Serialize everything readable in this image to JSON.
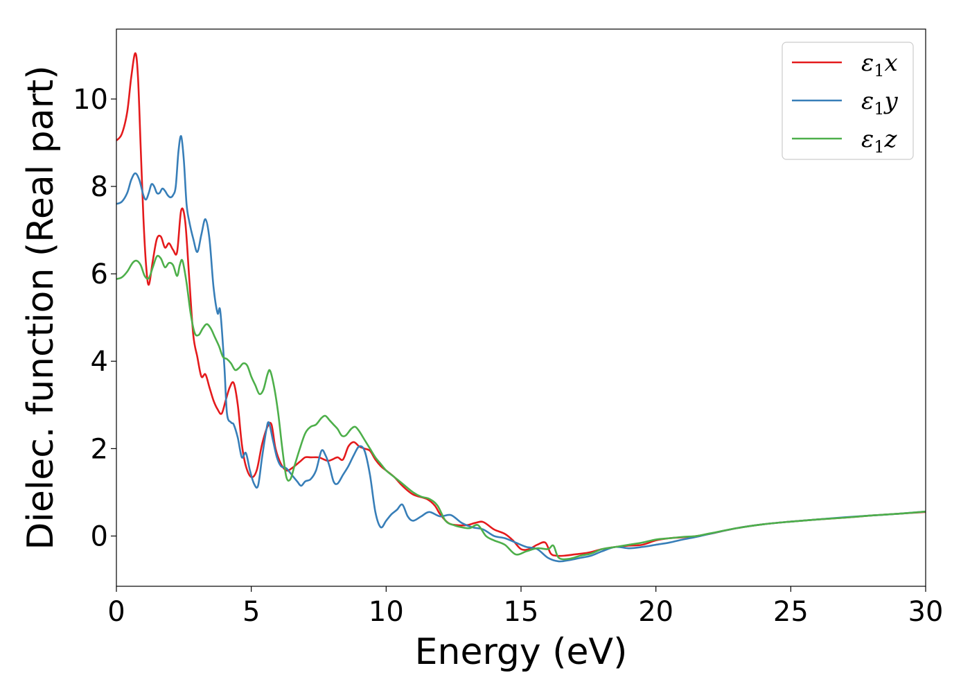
{
  "chart_data": {
    "type": "line",
    "xlabel": "Energy (eV)",
    "ylabel": "Dielec. function (Real part)",
    "xlim": [
      0,
      30
    ],
    "ylim": [
      -1.15,
      11.6
    ],
    "xticks": [
      0,
      5,
      10,
      15,
      20,
      25,
      30
    ],
    "yticks": [
      0,
      2,
      4,
      6,
      8,
      10
    ],
    "grid": false,
    "legend_position": "top-right",
    "series": [
      {
        "name": "ε₁x",
        "legend_base": "ε",
        "legend_sub": "1",
        "legend_var": "x",
        "color": "#e41a1c",
        "points": [
          [
            0,
            9.05
          ],
          [
            0.2,
            9.2
          ],
          [
            0.4,
            9.7
          ],
          [
            0.55,
            10.5
          ],
          [
            0.7,
            11.05
          ],
          [
            0.8,
            10.5
          ],
          [
            0.9,
            8.9
          ],
          [
            1.0,
            7.3
          ],
          [
            1.1,
            6.2
          ],
          [
            1.2,
            5.75
          ],
          [
            1.35,
            6.3
          ],
          [
            1.5,
            6.8
          ],
          [
            1.65,
            6.85
          ],
          [
            1.8,
            6.6
          ],
          [
            1.95,
            6.7
          ],
          [
            2.1,
            6.55
          ],
          [
            2.25,
            6.5
          ],
          [
            2.4,
            7.45
          ],
          [
            2.55,
            7.2
          ],
          [
            2.7,
            5.9
          ],
          [
            2.85,
            4.6
          ],
          [
            3.0,
            4.1
          ],
          [
            3.15,
            3.65
          ],
          [
            3.3,
            3.7
          ],
          [
            3.45,
            3.4
          ],
          [
            3.6,
            3.1
          ],
          [
            3.75,
            2.9
          ],
          [
            3.9,
            2.8
          ],
          [
            4.05,
            3.1
          ],
          [
            4.2,
            3.4
          ],
          [
            4.35,
            3.5
          ],
          [
            4.5,
            3.0
          ],
          [
            4.65,
            2.1
          ],
          [
            4.8,
            1.6
          ],
          [
            5.0,
            1.35
          ],
          [
            5.2,
            1.5
          ],
          [
            5.4,
            2.1
          ],
          [
            5.6,
            2.5
          ],
          [
            5.75,
            2.55
          ],
          [
            5.9,
            2.0
          ],
          [
            6.1,
            1.65
          ],
          [
            6.3,
            1.5
          ],
          [
            6.5,
            1.55
          ],
          [
            6.8,
            1.7
          ],
          [
            7.0,
            1.8
          ],
          [
            7.2,
            1.8
          ],
          [
            7.5,
            1.8
          ],
          [
            7.7,
            1.75
          ],
          [
            7.85,
            1.72
          ],
          [
            8.0,
            1.75
          ],
          [
            8.2,
            1.8
          ],
          [
            8.4,
            1.75
          ],
          [
            8.6,
            2.05
          ],
          [
            8.8,
            2.15
          ],
          [
            9.0,
            2.05
          ],
          [
            9.2,
            2.0
          ],
          [
            9.4,
            1.95
          ],
          [
            9.6,
            1.75
          ],
          [
            9.8,
            1.6
          ],
          [
            10.0,
            1.5
          ],
          [
            10.3,
            1.35
          ],
          [
            10.6,
            1.15
          ],
          [
            11.0,
            0.95
          ],
          [
            11.5,
            0.85
          ],
          [
            11.8,
            0.7
          ],
          [
            12.0,
            0.5
          ],
          [
            12.3,
            0.3
          ],
          [
            12.6,
            0.25
          ],
          [
            13.0,
            0.25
          ],
          [
            13.3,
            0.3
          ],
          [
            13.6,
            0.32
          ],
          [
            14.0,
            0.15
          ],
          [
            14.4,
            0.05
          ],
          [
            14.7,
            -0.1
          ],
          [
            15.0,
            -0.3
          ],
          [
            15.3,
            -0.3
          ],
          [
            15.6,
            -0.2
          ],
          [
            15.9,
            -0.15
          ],
          [
            16.1,
            -0.4
          ],
          [
            16.3,
            -0.45
          ],
          [
            16.6,
            -0.45
          ],
          [
            17.0,
            -0.42
          ],
          [
            17.5,
            -0.38
          ],
          [
            18.0,
            -0.3
          ],
          [
            18.5,
            -0.25
          ],
          [
            19.0,
            -0.22
          ],
          [
            19.5,
            -0.2
          ],
          [
            20.0,
            -0.1
          ],
          [
            20.5,
            -0.05
          ],
          [
            21.0,
            -0.03
          ],
          [
            21.5,
            0.0
          ],
          [
            22.0,
            0.05
          ],
          [
            23.0,
            0.18
          ],
          [
            24.0,
            0.27
          ],
          [
            25.0,
            0.33
          ],
          [
            26.0,
            0.38
          ],
          [
            27.0,
            0.42
          ],
          [
            28.0,
            0.47
          ],
          [
            29.0,
            0.51
          ],
          [
            30.0,
            0.55
          ]
        ]
      },
      {
        "name": "ε₁y",
        "legend_base": "ε",
        "legend_sub": "1",
        "legend_var": "y",
        "color": "#377eb8",
        "points": [
          [
            0,
            7.6
          ],
          [
            0.2,
            7.65
          ],
          [
            0.4,
            7.85
          ],
          [
            0.55,
            8.15
          ],
          [
            0.7,
            8.3
          ],
          [
            0.85,
            8.15
          ],
          [
            1.0,
            7.8
          ],
          [
            1.1,
            7.7
          ],
          [
            1.2,
            7.85
          ],
          [
            1.3,
            8.05
          ],
          [
            1.4,
            8.0
          ],
          [
            1.5,
            7.85
          ],
          [
            1.6,
            7.85
          ],
          [
            1.7,
            7.95
          ],
          [
            1.8,
            7.9
          ],
          [
            1.9,
            7.8
          ],
          [
            2.0,
            7.75
          ],
          [
            2.1,
            7.8
          ],
          [
            2.2,
            8.0
          ],
          [
            2.3,
            8.8
          ],
          [
            2.4,
            9.15
          ],
          [
            2.5,
            8.6
          ],
          [
            2.6,
            7.6
          ],
          [
            2.7,
            7.2
          ],
          [
            2.85,
            6.8
          ],
          [
            3.0,
            6.5
          ],
          [
            3.15,
            6.9
          ],
          [
            3.3,
            7.25
          ],
          [
            3.45,
            6.8
          ],
          [
            3.6,
            5.7
          ],
          [
            3.75,
            5.1
          ],
          [
            3.85,
            5.15
          ],
          [
            4.0,
            3.9
          ],
          [
            4.1,
            2.8
          ],
          [
            4.25,
            2.6
          ],
          [
            4.35,
            2.55
          ],
          [
            4.5,
            2.25
          ],
          [
            4.65,
            1.8
          ],
          [
            4.8,
            1.9
          ],
          [
            4.95,
            1.5
          ],
          [
            5.1,
            1.2
          ],
          [
            5.25,
            1.15
          ],
          [
            5.4,
            1.8
          ],
          [
            5.55,
            2.4
          ],
          [
            5.65,
            2.6
          ],
          [
            5.8,
            2.2
          ],
          [
            5.95,
            1.8
          ],
          [
            6.1,
            1.6
          ],
          [
            6.3,
            1.55
          ],
          [
            6.5,
            1.4
          ],
          [
            6.7,
            1.25
          ],
          [
            6.85,
            1.15
          ],
          [
            7.0,
            1.25
          ],
          [
            7.2,
            1.3
          ],
          [
            7.4,
            1.5
          ],
          [
            7.6,
            1.95
          ],
          [
            7.75,
            1.85
          ],
          [
            7.9,
            1.6
          ],
          [
            8.05,
            1.25
          ],
          [
            8.2,
            1.2
          ],
          [
            8.4,
            1.4
          ],
          [
            8.6,
            1.6
          ],
          [
            8.8,
            1.85
          ],
          [
            9.0,
            2.05
          ],
          [
            9.2,
            1.95
          ],
          [
            9.4,
            1.4
          ],
          [
            9.6,
            0.55
          ],
          [
            9.8,
            0.2
          ],
          [
            10.0,
            0.35
          ],
          [
            10.2,
            0.5
          ],
          [
            10.4,
            0.6
          ],
          [
            10.6,
            0.72
          ],
          [
            10.8,
            0.45
          ],
          [
            11.0,
            0.35
          ],
          [
            11.3,
            0.45
          ],
          [
            11.6,
            0.55
          ],
          [
            12.0,
            0.45
          ],
          [
            12.4,
            0.48
          ],
          [
            12.8,
            0.3
          ],
          [
            13.2,
            0.2
          ],
          [
            13.6,
            0.15
          ],
          [
            14.0,
            0.0
          ],
          [
            14.4,
            -0.05
          ],
          [
            14.8,
            -0.15
          ],
          [
            15.2,
            -0.25
          ],
          [
            15.6,
            -0.3
          ],
          [
            16.0,
            -0.5
          ],
          [
            16.4,
            -0.58
          ],
          [
            16.8,
            -0.55
          ],
          [
            17.2,
            -0.5
          ],
          [
            17.6,
            -0.45
          ],
          [
            18.0,
            -0.35
          ],
          [
            18.5,
            -0.25
          ],
          [
            19.0,
            -0.28
          ],
          [
            19.5,
            -0.25
          ],
          [
            20.0,
            -0.2
          ],
          [
            20.5,
            -0.15
          ],
          [
            21.0,
            -0.08
          ],
          [
            21.5,
            -0.02
          ],
          [
            22.0,
            0.05
          ],
          [
            23.0,
            0.18
          ],
          [
            24.0,
            0.27
          ],
          [
            25.0,
            0.33
          ],
          [
            26.0,
            0.38
          ],
          [
            27.0,
            0.43
          ],
          [
            28.0,
            0.47
          ],
          [
            29.0,
            0.51
          ],
          [
            30.0,
            0.56
          ]
        ]
      },
      {
        "name": "ε₁z",
        "legend_base": "ε",
        "legend_sub": "1",
        "legend_var": "z",
        "color": "#4daf4a",
        "points": [
          [
            0,
            5.88
          ],
          [
            0.2,
            5.92
          ],
          [
            0.4,
            6.05
          ],
          [
            0.6,
            6.25
          ],
          [
            0.75,
            6.3
          ],
          [
            0.9,
            6.2
          ],
          [
            1.05,
            5.95
          ],
          [
            1.2,
            5.9
          ],
          [
            1.35,
            6.15
          ],
          [
            1.5,
            6.4
          ],
          [
            1.65,
            6.35
          ],
          [
            1.8,
            6.15
          ],
          [
            1.95,
            6.25
          ],
          [
            2.1,
            6.2
          ],
          [
            2.25,
            5.95
          ],
          [
            2.35,
            6.2
          ],
          [
            2.45,
            6.3
          ],
          [
            2.6,
            5.8
          ],
          [
            2.75,
            5.1
          ],
          [
            2.9,
            4.65
          ],
          [
            3.05,
            4.6
          ],
          [
            3.2,
            4.75
          ],
          [
            3.35,
            4.85
          ],
          [
            3.5,
            4.75
          ],
          [
            3.65,
            4.55
          ],
          [
            3.8,
            4.35
          ],
          [
            3.95,
            4.1
          ],
          [
            4.1,
            4.05
          ],
          [
            4.25,
            3.95
          ],
          [
            4.4,
            3.8
          ],
          [
            4.55,
            3.85
          ],
          [
            4.7,
            3.95
          ],
          [
            4.85,
            3.9
          ],
          [
            5.0,
            3.65
          ],
          [
            5.15,
            3.45
          ],
          [
            5.3,
            3.25
          ],
          [
            5.45,
            3.35
          ],
          [
            5.6,
            3.7
          ],
          [
            5.7,
            3.78
          ],
          [
            5.85,
            3.4
          ],
          [
            6.0,
            2.8
          ],
          [
            6.15,
            2.0
          ],
          [
            6.3,
            1.35
          ],
          [
            6.45,
            1.3
          ],
          [
            6.6,
            1.6
          ],
          [
            6.8,
            2.0
          ],
          [
            7.0,
            2.35
          ],
          [
            7.2,
            2.5
          ],
          [
            7.4,
            2.55
          ],
          [
            7.6,
            2.7
          ],
          [
            7.75,
            2.75
          ],
          [
            7.9,
            2.65
          ],
          [
            8.05,
            2.55
          ],
          [
            8.2,
            2.45
          ],
          [
            8.35,
            2.3
          ],
          [
            8.5,
            2.3
          ],
          [
            8.7,
            2.45
          ],
          [
            8.85,
            2.5
          ],
          [
            9.0,
            2.4
          ],
          [
            9.2,
            2.2
          ],
          [
            9.4,
            2.0
          ],
          [
            9.6,
            1.8
          ],
          [
            9.8,
            1.65
          ],
          [
            10.0,
            1.5
          ],
          [
            10.3,
            1.35
          ],
          [
            10.6,
            1.2
          ],
          [
            11.0,
            1.0
          ],
          [
            11.3,
            0.9
          ],
          [
            11.6,
            0.85
          ],
          [
            11.9,
            0.7
          ],
          [
            12.2,
            0.35
          ],
          [
            12.5,
            0.25
          ],
          [
            12.8,
            0.2
          ],
          [
            13.1,
            0.18
          ],
          [
            13.4,
            0.25
          ],
          [
            13.7,
            0.0
          ],
          [
            14.0,
            -0.1
          ],
          [
            14.4,
            -0.2
          ],
          [
            14.8,
            -0.42
          ],
          [
            15.2,
            -0.35
          ],
          [
            15.6,
            -0.28
          ],
          [
            16.0,
            -0.3
          ],
          [
            16.2,
            -0.22
          ],
          [
            16.4,
            -0.5
          ],
          [
            16.8,
            -0.52
          ],
          [
            17.2,
            -0.45
          ],
          [
            17.6,
            -0.4
          ],
          [
            18.0,
            -0.3
          ],
          [
            18.5,
            -0.25
          ],
          [
            19.0,
            -0.2
          ],
          [
            19.5,
            -0.15
          ],
          [
            20.0,
            -0.08
          ],
          [
            20.5,
            -0.05
          ],
          [
            21.0,
            -0.02
          ],
          [
            21.5,
            0.0
          ],
          [
            22.0,
            0.06
          ],
          [
            23.0,
            0.18
          ],
          [
            24.0,
            0.27
          ],
          [
            25.0,
            0.33
          ],
          [
            26.0,
            0.38
          ],
          [
            27.0,
            0.42
          ],
          [
            28.0,
            0.47
          ],
          [
            29.0,
            0.51
          ],
          [
            30.0,
            0.56
          ]
        ]
      }
    ]
  }
}
